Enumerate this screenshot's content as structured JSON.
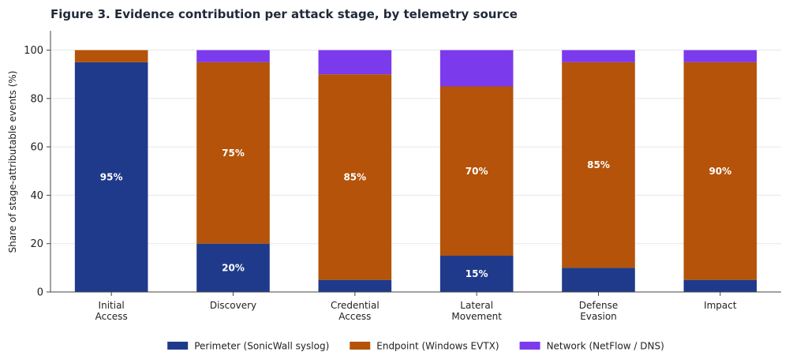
{
  "chart_data": {
    "type": "bar",
    "stacked": true,
    "title": "Figure 3.  Evidence contribution per attack stage, by telemetry source",
    "ylabel": "Share of stage-attributable events (%)",
    "xlabel": "",
    "ylim": [
      0,
      108
    ],
    "yticks": [
      0,
      20,
      40,
      60,
      80,
      100
    ],
    "grid": true,
    "legend_position": "bottom",
    "categories": [
      [
        "Initial",
        "Access"
      ],
      [
        "Discovery"
      ],
      [
        "Credential",
        "Access"
      ],
      [
        "Lateral",
        "Movement"
      ],
      [
        "Defense",
        "Evasion"
      ],
      [
        "Impact"
      ]
    ],
    "series": [
      {
        "name": "Perimeter (SonicWall syslog)",
        "color": "#1f3a8a",
        "values": [
          95,
          20,
          5,
          15,
          10,
          5
        ],
        "labels": [
          "95%",
          "20%",
          "",
          "15%",
          "",
          ""
        ]
      },
      {
        "name": "Endpoint (Windows EVTX)",
        "color": "#b45309",
        "values": [
          5,
          75,
          85,
          70,
          85,
          90
        ],
        "labels": [
          "",
          "75%",
          "85%",
          "70%",
          "85%",
          "90%"
        ]
      },
      {
        "name": "Network (NetFlow / DNS)",
        "color": "#7c3aed",
        "values": [
          0,
          5,
          10,
          15,
          5,
          5
        ],
        "labels": [
          "",
          "",
          "",
          "",
          "",
          ""
        ]
      }
    ]
  }
}
